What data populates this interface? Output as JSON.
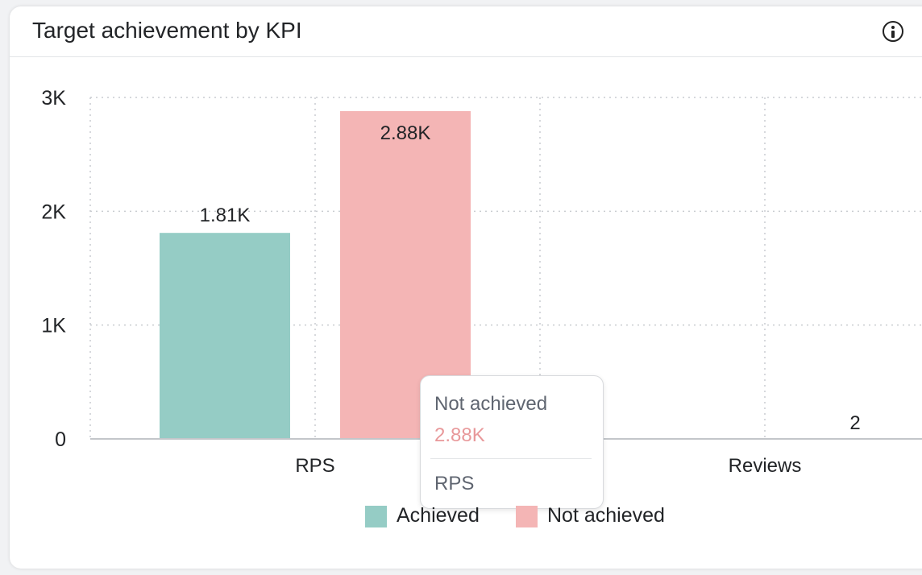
{
  "card": {
    "title": "Target achievement by KPI",
    "info_icon": "info-icon"
  },
  "colors": {
    "achieved": "#95ccc5",
    "not_achieved": "#f4b5b5",
    "tooltip_value": "#e8989a"
  },
  "tooltip": {
    "series": "Not achieved",
    "value": "2.88K",
    "category": "RPS"
  },
  "chart_data": {
    "type": "bar",
    "title": "Target achievement by KPI",
    "categories": [
      "RPS",
      "Reviews"
    ],
    "series": [
      {
        "name": "Achieved",
        "values": [
          1810,
          0
        ],
        "labels": [
          "1.81K",
          ""
        ]
      },
      {
        "name": "Not achieved",
        "values": [
          2880,
          2
        ],
        "labels": [
          "2.88K",
          "2"
        ]
      }
    ],
    "y_ticks": [
      {
        "value": 0,
        "label": "0"
      },
      {
        "value": 1000,
        "label": "1K"
      },
      {
        "value": 2000,
        "label": "2K"
      },
      {
        "value": 3000,
        "label": "3K"
      }
    ],
    "ylim": [
      0,
      3000
    ],
    "grid": true,
    "legend_position": "bottom"
  }
}
